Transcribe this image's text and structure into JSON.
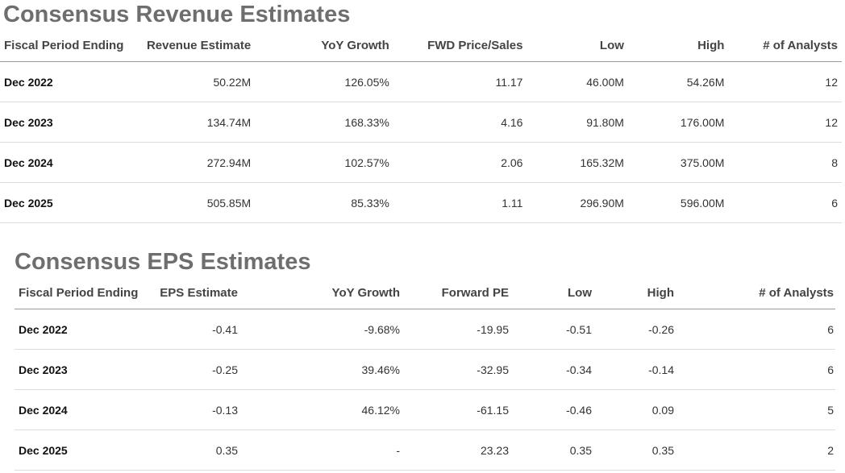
{
  "revenue": {
    "title": "Consensus Revenue Estimates",
    "columns": [
      "Fiscal Period Ending",
      "Revenue Estimate",
      "YoY Growth",
      "FWD Price/Sales",
      "Low",
      "High",
      "# of Analysts"
    ],
    "rows": [
      [
        "Dec 2022",
        "50.22M",
        "126.05%",
        "11.17",
        "46.00M",
        "54.26M",
        "12"
      ],
      [
        "Dec 2023",
        "134.74M",
        "168.33%",
        "4.16",
        "91.80M",
        "176.00M",
        "12"
      ],
      [
        "Dec 2024",
        "272.94M",
        "102.57%",
        "2.06",
        "165.32M",
        "375.00M",
        "8"
      ],
      [
        "Dec 2025",
        "505.85M",
        "85.33%",
        "1.11",
        "296.90M",
        "596.00M",
        "6"
      ]
    ]
  },
  "eps": {
    "title": "Consensus EPS Estimates",
    "columns": [
      "Fiscal Period Ending",
      "EPS Estimate",
      "YoY Growth",
      "Forward PE",
      "Low",
      "High",
      "# of Analysts"
    ],
    "rows": [
      [
        "Dec 2022",
        "-0.41",
        "-9.68%",
        "-19.95",
        "-0.51",
        "-0.26",
        "6"
      ],
      [
        "Dec 2023",
        "-0.25",
        "39.46%",
        "-32.95",
        "-0.34",
        "-0.14",
        "6"
      ],
      [
        "Dec 2024",
        "-0.13",
        "46.12%",
        "-61.15",
        "-0.46",
        "0.09",
        "5"
      ],
      [
        "Dec 2025",
        "0.35",
        "-",
        "23.23",
        "0.35",
        "0.35",
        "2"
      ]
    ]
  }
}
